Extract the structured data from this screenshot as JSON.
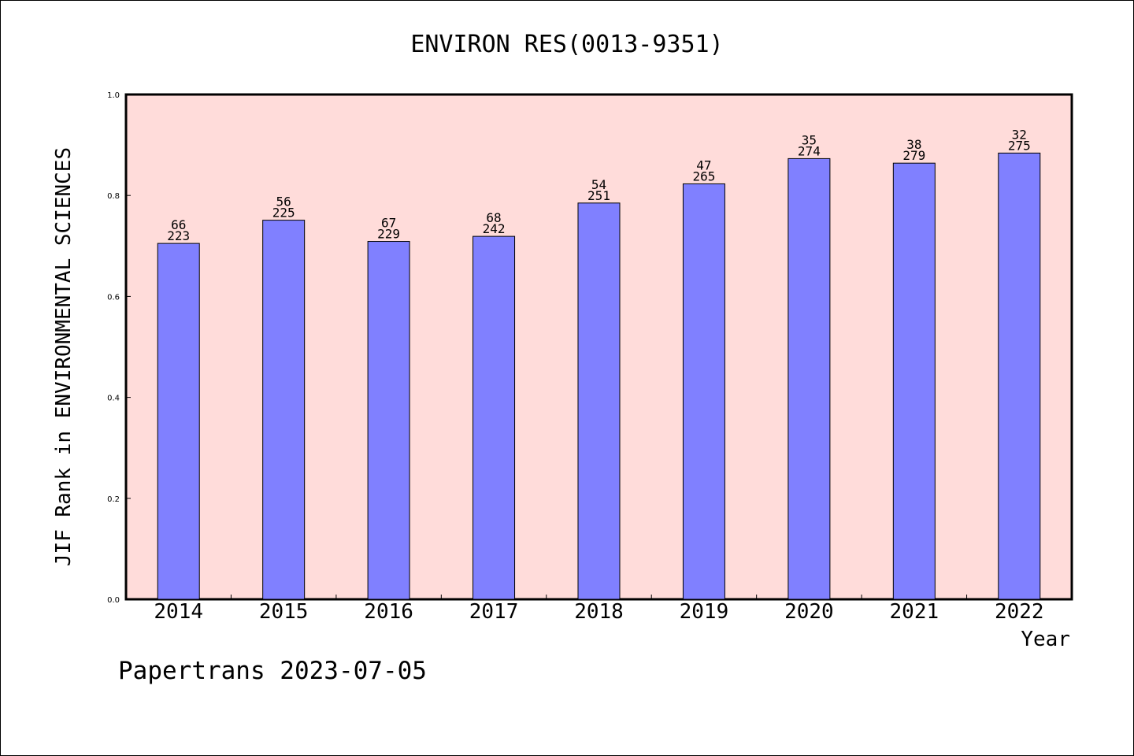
{
  "footer": "Papertrans 2023-07-05",
  "colors": {
    "plot_background": "#FFDCDA",
    "bar_fill": "#8080FF",
    "bar_stroke": "#000000",
    "axis": "#000000"
  },
  "chart_data": {
    "type": "bar",
    "title": "ENVIRON RES(0013-9351)",
    "xlabel": "Year",
    "ylabel": "JIF Rank in ENVIRONMENTAL SCIENCES",
    "ylim": [
      0,
      1.0
    ],
    "yticks": [
      "0.0",
      "0.2",
      "0.4",
      "0.6",
      "0.8",
      "1.0"
    ],
    "grid": false,
    "categories": [
      "2014",
      "2015",
      "2016",
      "2017",
      "2018",
      "2019",
      "2020",
      "2021",
      "2022"
    ],
    "values": [
      0.705,
      0.751,
      0.709,
      0.719,
      0.785,
      0.823,
      0.873,
      0.864,
      0.884
    ],
    "rank_labels": [
      "66",
      "56",
      "67",
      "68",
      "54",
      "47",
      "35",
      "38",
      "32"
    ],
    "total_labels": [
      "223",
      "225",
      "229",
      "242",
      "251",
      "265",
      "274",
      "279",
      "275"
    ]
  }
}
